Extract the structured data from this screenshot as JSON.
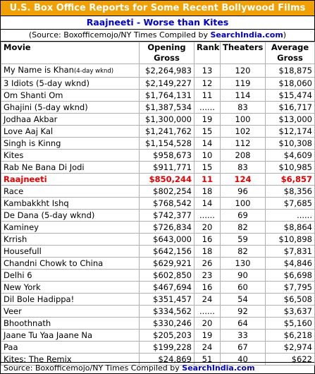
{
  "header": {
    "title": "U.S. Box Office Reports for Some Recent Bollywood Films",
    "subtitle": "Raajneeti - Worse than Kites",
    "source_prefix": "(Source: Boxofficemojo/NY Times  Compiled by ",
    "source_brand": "SearchIndia.com",
    "source_suffix": ")"
  },
  "columns": {
    "movie": "Movie",
    "opening_1": "Opening",
    "opening_2": "Gross",
    "rank": "Rank",
    "theaters": "Theaters",
    "average_1": "Average",
    "average_2": "Gross"
  },
  "rows": [
    {
      "movie": "My Name is Khan",
      "note": "(4-day wknd)",
      "gross": "$2,264,983",
      "rank": "13",
      "theaters": "120",
      "avg": "$18,875"
    },
    {
      "movie": "3 Idiots (5-day wknd)",
      "note": "",
      "gross": "$2,149,227",
      "rank": "12",
      "theaters": "119",
      "avg": "$18,060"
    },
    {
      "movie": "Om Shanti Om",
      "note": "",
      "gross": "$1,764,131",
      "rank": "11",
      "theaters": "114",
      "avg": "$15,474"
    },
    {
      "movie": "Ghajini (5-day wknd)",
      "note": "",
      "gross": "$1,387,534",
      "rank": "......",
      "theaters": "83",
      "avg": "$16,717"
    },
    {
      "movie": "Jodhaa Akbar",
      "note": "",
      "gross": "$1,300,000",
      "rank": "19",
      "theaters": "100",
      "avg": "$13,000"
    },
    {
      "movie": "Love Aaj Kal",
      "note": "",
      "gross": "$1,241,762",
      "rank": "15",
      "theaters": "102",
      "avg": "$12,174"
    },
    {
      "movie": "Singh is Kinng",
      "note": "",
      "gross": "$1,154,528",
      "rank": "14",
      "theaters": "112",
      "avg": "$10,308"
    },
    {
      "movie": "Kites",
      "note": "",
      "gross": "$958,673",
      "rank": "10",
      "theaters": "208",
      "avg": "$4,609"
    },
    {
      "movie": "Rab Ne Bana Di Jodi",
      "note": "",
      "gross": "$911,771",
      "rank": "15",
      "theaters": "83",
      "avg": "$10,985"
    },
    {
      "movie": "Raajneeti",
      "note": "",
      "gross": "$850,244",
      "rank": "11",
      "theaters": "124",
      "avg": "$6,857",
      "highlight": true
    },
    {
      "movie": "Race",
      "note": "",
      "gross": "$802,254",
      "rank": "18",
      "theaters": "96",
      "avg": "$8,356"
    },
    {
      "movie": "Kambakkht Ishq",
      "note": "",
      "gross": "$768,542",
      "rank": "14",
      "theaters": "100",
      "avg": "$7,685"
    },
    {
      "movie": "De Dana (5-day wknd)",
      "note": "",
      "gross": "$742,377",
      "rank": "......",
      "theaters": "69",
      "avg": "......"
    },
    {
      "movie": "Kaminey",
      "note": "",
      "gross": "$726,834",
      "rank": "20",
      "theaters": "82",
      "avg": "$8,864"
    },
    {
      "movie": "Krrish",
      "note": "",
      "gross": "$643,000",
      "rank": "16",
      "theaters": "59",
      "avg": "$10,898"
    },
    {
      "movie": "Housefull",
      "note": "",
      "gross": "$642,156",
      "rank": "18",
      "theaters": "82",
      "avg": "$7,831"
    },
    {
      "movie": "Chandni Chowk to China",
      "note": "",
      "gross": "$629,921",
      "rank": "26",
      "theaters": "130",
      "avg": "$4,846"
    },
    {
      "movie": "Delhi 6",
      "note": "",
      "gross": "$602,850",
      "rank": "23",
      "theaters": "90",
      "avg": "$6,698"
    },
    {
      "movie": "New York",
      "note": "",
      "gross": "$467,694",
      "rank": "16",
      "theaters": "60",
      "avg": "$7,795"
    },
    {
      "movie": "Dil Bole Hadippa!",
      "note": "",
      "gross": "$351,457",
      "rank": "24",
      "theaters": "54",
      "avg": "$6,508"
    },
    {
      "movie": "Veer",
      "note": "",
      "gross": "$334,562",
      "rank": "......",
      "theaters": "92",
      "avg": "$3,637"
    },
    {
      "movie": "Bhoothnath",
      "note": "",
      "gross": "$330,246",
      "rank": "20",
      "theaters": "64",
      "avg": "$5,160"
    },
    {
      "movie": "Jaane Tu Yaa Jaane Na",
      "note": "",
      "gross": "$205,203",
      "rank": "19",
      "theaters": "33",
      "avg": "$6,218"
    },
    {
      "movie": "Paa",
      "note": "",
      "gross": "$199,228",
      "rank": "24",
      "theaters": "67",
      "avg": "$2,974"
    },
    {
      "movie": "Kites: The Remix",
      "note": "",
      "gross": "$24,869",
      "rank": "51",
      "theaters": "40",
      "avg": "$622"
    }
  ],
  "footer": {
    "prefix": "Source: Boxofficemojo/NY Times  Compiled by ",
    "brand": "SearchIndia.com"
  },
  "colors": {
    "title_bg": "#f0a000",
    "brand_blue": "#0000cc",
    "highlight_red": "#e00000"
  }
}
